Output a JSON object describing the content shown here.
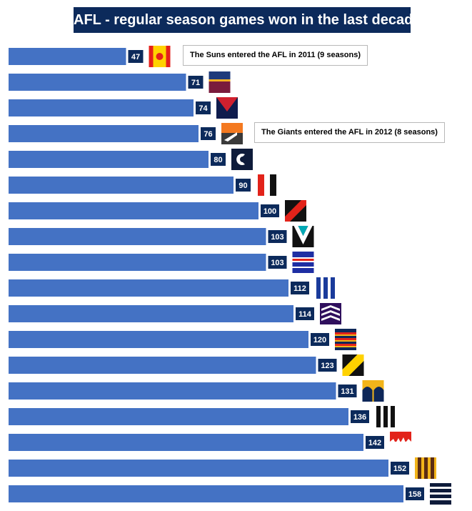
{
  "title": "AFL - regular season games won in the last decade",
  "colors": {
    "bar": "#4472c4",
    "label_bg": "#0c2a5b",
    "title_bg": "#0c2a5b"
  },
  "chart_data": {
    "type": "bar",
    "orientation": "horizontal",
    "values": [
      47,
      71,
      74,
      76,
      80,
      90,
      100,
      103,
      103,
      112,
      114,
      120,
      123,
      131,
      136,
      142,
      152,
      158
    ],
    "value_labels": [
      "47",
      "71",
      "74",
      "76",
      "80",
      "90",
      "100",
      "103",
      "103",
      "112",
      "114",
      "120",
      "123",
      "131",
      "136",
      "142",
      "152",
      "158"
    ],
    "bar_icons": [
      "guernsey-red-yellow-sun-icon",
      "guernsey-maroon-blue-gold-icon",
      "guernsey-navy-red-v-icon",
      "guernsey-orange-charcoal-icon",
      "guernsey-navy-monogram-icon",
      "guernsey-red-black-white-stripes-icon",
      "guernsey-black-red-sash-icon",
      "guernsey-black-teal-chevron-icon",
      "guernsey-blue-red-hoops-icon",
      "guernsey-blue-white-stripes-icon",
      "guernsey-purple-chevrons-icon",
      "guernsey-navy-red-gold-hoops-icon",
      "guernsey-black-yellow-sash-icon",
      "guernsey-navy-gold-arches-icon",
      "guernsey-black-white-stripes-icon",
      "guernsey-red-white-bloods-icon",
      "guernsey-brown-gold-stripes-icon",
      "guernsey-navy-white-hoops-icon"
    ],
    "annotations": [
      {
        "bar_index": 0,
        "text": "The Suns entered the AFL in 2011 (9 seasons)"
      },
      {
        "bar_index": 3,
        "text": "The Giants entered the AFL in 2012 (8 seasons)"
      }
    ],
    "title": "AFL - regular season games won in the last decade",
    "xlabel": "",
    "ylabel": "",
    "grid": false
  }
}
